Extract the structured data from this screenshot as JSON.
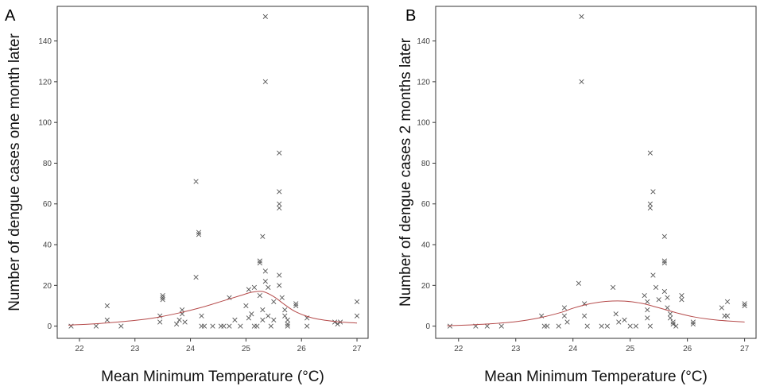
{
  "colors": {
    "marker": "#555555",
    "curve": "#b54a4a",
    "frame": "#333333"
  },
  "chart_data": [
    {
      "type": "scatter",
      "panel_label": "A",
      "title": "",
      "xlabel": "Mean Minimum Temperature (°C)",
      "ylabel": "Number of dengue cases one month later",
      "xlim": [
        21.6,
        27.2
      ],
      "ylim": [
        -6,
        157
      ],
      "xticks": [
        22,
        23,
        24,
        25,
        26,
        27
      ],
      "yticks": [
        0,
        20,
        40,
        60,
        80,
        100,
        120,
        140
      ],
      "grid": false,
      "marker": "x",
      "points": [
        [
          21.85,
          0
        ],
        [
          22.3,
          0
        ],
        [
          22.5,
          10
        ],
        [
          22.5,
          3
        ],
        [
          22.75,
          0
        ],
        [
          23.45,
          2
        ],
        [
          23.45,
          5
        ],
        [
          23.5,
          14
        ],
        [
          23.5,
          13
        ],
        [
          23.5,
          15
        ],
        [
          23.75,
          1
        ],
        [
          23.8,
          3
        ],
        [
          23.85,
          8
        ],
        [
          23.85,
          6
        ],
        [
          23.9,
          2
        ],
        [
          24.1,
          71
        ],
        [
          24.15,
          46
        ],
        [
          24.15,
          45
        ],
        [
          24.1,
          24
        ],
        [
          24.2,
          5
        ],
        [
          24.2,
          0
        ],
        [
          24.25,
          0
        ],
        [
          24.4,
          0
        ],
        [
          24.55,
          0
        ],
        [
          24.6,
          0
        ],
        [
          24.7,
          14
        ],
        [
          24.7,
          0
        ],
        [
          24.8,
          3
        ],
        [
          24.9,
          0
        ],
        [
          25.0,
          10
        ],
        [
          25.05,
          18
        ],
        [
          25.05,
          4
        ],
        [
          25.1,
          6
        ],
        [
          25.15,
          19
        ],
        [
          25.15,
          0
        ],
        [
          25.2,
          0
        ],
        [
          25.25,
          32
        ],
        [
          25.25,
          31
        ],
        [
          25.25,
          15
        ],
        [
          25.3,
          44
        ],
        [
          25.3,
          8
        ],
        [
          25.3,
          3
        ],
        [
          25.35,
          152
        ],
        [
          25.35,
          120
        ],
        [
          25.35,
          27
        ],
        [
          25.35,
          22
        ],
        [
          25.4,
          19
        ],
        [
          25.4,
          5
        ],
        [
          25.45,
          0
        ],
        [
          25.5,
          3
        ],
        [
          25.5,
          12
        ],
        [
          25.6,
          85
        ],
        [
          25.6,
          66
        ],
        [
          25.6,
          60
        ],
        [
          25.6,
          58
        ],
        [
          25.6,
          25
        ],
        [
          25.6,
          20
        ],
        [
          25.65,
          14
        ],
        [
          25.7,
          8
        ],
        [
          25.7,
          5
        ],
        [
          25.75,
          3
        ],
        [
          25.75,
          1
        ],
        [
          25.75,
          0
        ],
        [
          25.9,
          11
        ],
        [
          25.9,
          10
        ],
        [
          26.1,
          4
        ],
        [
          26.1,
          0
        ],
        [
          26.6,
          2
        ],
        [
          26.65,
          1
        ],
        [
          26.7,
          2
        ],
        [
          27.0,
          12
        ],
        [
          27.0,
          5
        ]
      ],
      "fit_curve": {
        "x": [
          21.8,
          22.2,
          22.6,
          23.0,
          23.4,
          23.8,
          24.2,
          24.6,
          24.9,
          25.1,
          25.3,
          25.5,
          25.7,
          25.9,
          26.2,
          26.6,
          27.0
        ],
        "y": [
          0.5,
          1.0,
          1.8,
          2.8,
          4.3,
          6.5,
          9.2,
          12.5,
          15.0,
          16.6,
          17.0,
          14.5,
          10.5,
          7.0,
          4.0,
          2.3,
          1.5
        ]
      }
    },
    {
      "type": "scatter",
      "panel_label": "B",
      "title": "",
      "xlabel": "Mean Minimum Temperature (°C)",
      "ylabel": "Number of dengue cases 2 months later",
      "xlim": [
        21.6,
        27.2
      ],
      "ylim": [
        -6,
        157
      ],
      "xticks": [
        22,
        23,
        24,
        25,
        26,
        27
      ],
      "yticks": [
        0,
        20,
        40,
        60,
        80,
        100,
        120,
        140
      ],
      "grid": false,
      "marker": "x",
      "points": [
        [
          21.85,
          0
        ],
        [
          22.3,
          0
        ],
        [
          22.5,
          0
        ],
        [
          22.75,
          0
        ],
        [
          23.45,
          5
        ],
        [
          23.5,
          0
        ],
        [
          23.55,
          0
        ],
        [
          23.75,
          0
        ],
        [
          23.85,
          9
        ],
        [
          23.85,
          5
        ],
        [
          23.9,
          2
        ],
        [
          24.1,
          21
        ],
        [
          24.15,
          152
        ],
        [
          24.15,
          120
        ],
        [
          24.2,
          11
        ],
        [
          24.2,
          5
        ],
        [
          24.25,
          0
        ],
        [
          24.5,
          0
        ],
        [
          24.6,
          0
        ],
        [
          24.7,
          19
        ],
        [
          24.75,
          6
        ],
        [
          24.8,
          2
        ],
        [
          24.9,
          3
        ],
        [
          25.0,
          0
        ],
        [
          25.1,
          0
        ],
        [
          25.25,
          15
        ],
        [
          25.3,
          12
        ],
        [
          25.3,
          8
        ],
        [
          25.3,
          4
        ],
        [
          25.35,
          0
        ],
        [
          25.35,
          85
        ],
        [
          25.35,
          60
        ],
        [
          25.35,
          58
        ],
        [
          25.4,
          66
        ],
        [
          25.4,
          25
        ],
        [
          25.45,
          19
        ],
        [
          25.5,
          13
        ],
        [
          25.6,
          44
        ],
        [
          25.6,
          31
        ],
        [
          25.6,
          32
        ],
        [
          25.6,
          17
        ],
        [
          25.65,
          14
        ],
        [
          25.65,
          9
        ],
        [
          25.7,
          6
        ],
        [
          25.7,
          4
        ],
        [
          25.75,
          2
        ],
        [
          25.75,
          1
        ],
        [
          25.8,
          0
        ],
        [
          25.9,
          15
        ],
        [
          25.9,
          13
        ],
        [
          26.1,
          2
        ],
        [
          26.1,
          1
        ],
        [
          26.6,
          9
        ],
        [
          26.65,
          5
        ],
        [
          26.7,
          12
        ],
        [
          26.7,
          5
        ],
        [
          27.0,
          11
        ],
        [
          27.0,
          10
        ]
      ],
      "fit_curve": {
        "x": [
          21.8,
          22.2,
          22.6,
          23.0,
          23.4,
          23.8,
          24.0,
          24.3,
          24.6,
          24.9,
          25.2,
          25.5,
          25.8,
          26.1,
          26.5,
          27.0
        ],
        "y": [
          0.2,
          0.6,
          1.2,
          2.2,
          4.0,
          6.8,
          8.8,
          11.0,
          12.2,
          12.3,
          11.2,
          9.0,
          6.6,
          4.6,
          3.0,
          2.0
        ]
      }
    }
  ]
}
